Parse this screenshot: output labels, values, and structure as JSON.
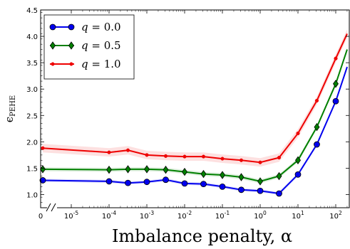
{
  "chart_data": {
    "type": "line",
    "xlabel": "Imbalance penalty, α",
    "ylabel": "ϵ_PEHE",
    "ylabel_main": "ϵ",
    "ylabel_sub": "PEHE",
    "x_scale": "symlog",
    "x_axis_break": "//",
    "xlim": [
      0,
      200
    ],
    "ylim": [
      0.75,
      4.5
    ],
    "x_ticks": [
      0,
      1e-05,
      0.0001,
      0.001,
      0.01,
      0.1,
      1,
      10,
      100
    ],
    "x_tick_labels": [
      {
        "base": "0",
        "exp": ""
      },
      {
        "base": "10",
        "exp": "-5"
      },
      {
        "base": "10",
        "exp": "-4"
      },
      {
        "base": "10",
        "exp": "-3"
      },
      {
        "base": "10",
        "exp": "-2"
      },
      {
        "base": "10",
        "exp": "-1"
      },
      {
        "base": "10",
        "exp": "0"
      },
      {
        "base": "10",
        "exp": "1"
      },
      {
        "base": "10",
        "exp": "2"
      }
    ],
    "y_ticks": [
      1.0,
      1.5,
      2.0,
      2.5,
      3.0,
      3.5,
      4.0,
      4.5
    ],
    "y_tick_labels": [
      "1.0",
      "1.5",
      "2.0",
      "2.5",
      "3.0",
      "3.5",
      "4.0",
      "4.5"
    ],
    "x": [
      0,
      0.0001,
      0.000316,
      0.001,
      0.00316,
      0.01,
      0.0316,
      0.1,
      0.316,
      1,
      3.16,
      10,
      31.6,
      100,
      200
    ],
    "series": [
      {
        "name": "q = 0.0",
        "color": "#0000ee",
        "marker": "circle",
        "values": [
          1.27,
          1.25,
          1.22,
          1.24,
          1.28,
          1.21,
          1.2,
          1.15,
          1.09,
          1.07,
          1.02,
          1.38,
          1.95,
          2.77,
          3.42
        ],
        "band": 0.03
      },
      {
        "name": "q = 0.5",
        "color": "#008000",
        "marker": "diamond",
        "values": [
          1.48,
          1.47,
          1.48,
          1.48,
          1.47,
          1.43,
          1.39,
          1.37,
          1.33,
          1.25,
          1.35,
          1.65,
          2.28,
          3.1,
          3.75
        ],
        "band": 0.04
      },
      {
        "name": "q = 1.0",
        "color": "#ee0000",
        "marker": "dot",
        "values": [
          1.88,
          1.8,
          1.84,
          1.75,
          1.73,
          1.72,
          1.72,
          1.68,
          1.65,
          1.61,
          1.7,
          2.16,
          2.78,
          3.58,
          4.05
        ],
        "band": 0.08
      }
    ],
    "grid": false,
    "legend_position": "top-left",
    "legend": [
      {
        "var": "q",
        "eq": " = ",
        "val": "0.0"
      },
      {
        "var": "q",
        "eq": " = ",
        "val": "0.5"
      },
      {
        "var": "q",
        "eq": " = ",
        "val": "1.0"
      }
    ]
  }
}
